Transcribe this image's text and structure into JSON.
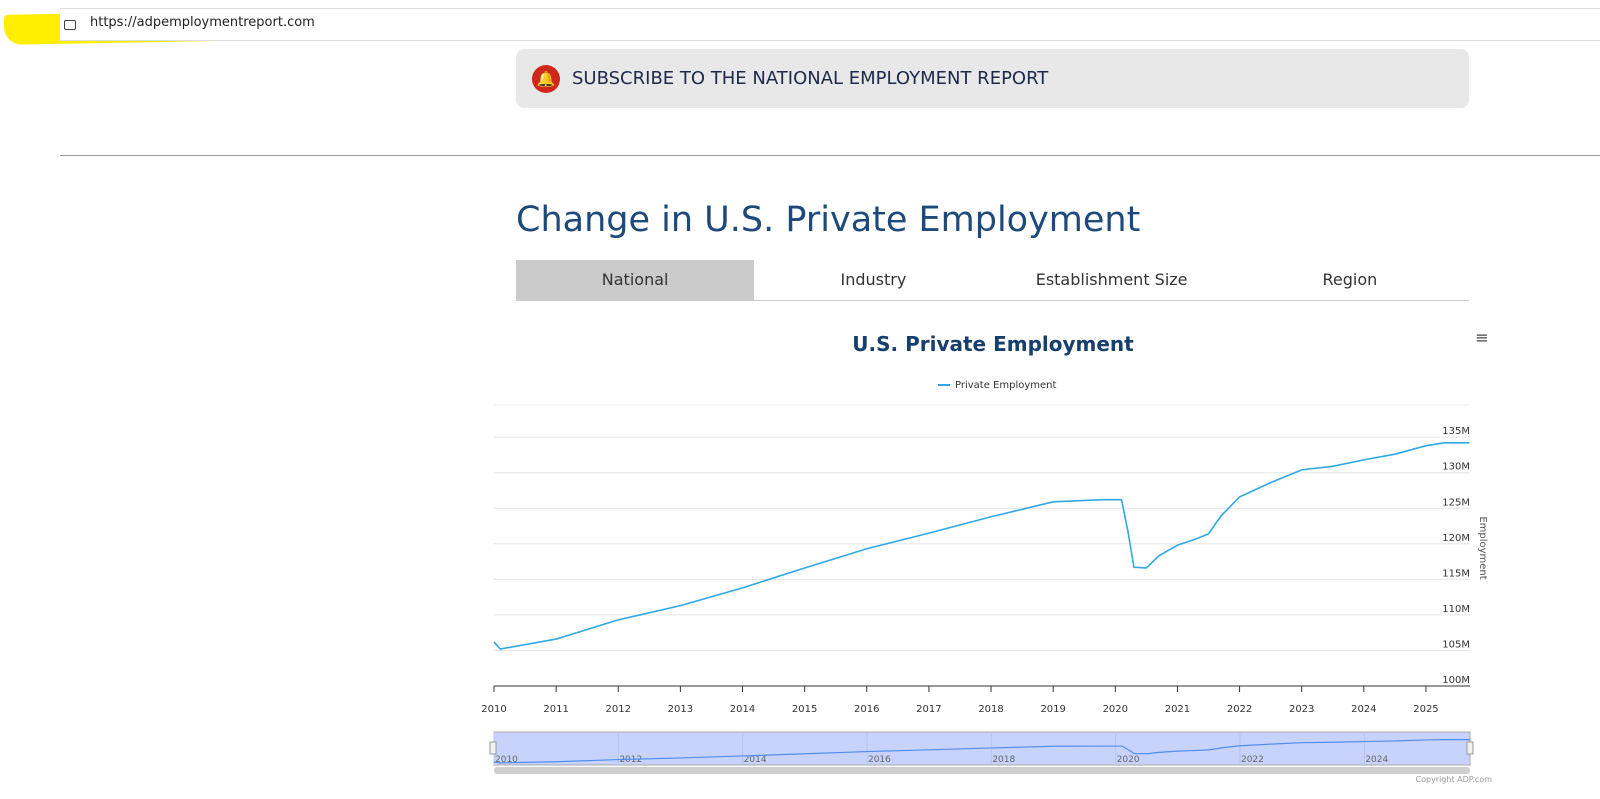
{
  "browser": {
    "url": "https://adpemploymentreport.com"
  },
  "subscribe": {
    "label": "SUBSCRIBE TO THE NATIONAL EMPLOYMENT REPORT",
    "icon": "bell-icon"
  },
  "page_title": "Change in U.S. Private Employment",
  "tabs": [
    {
      "label": "National",
      "active": true
    },
    {
      "label": "Industry"
    },
    {
      "label": "Establishment Size"
    },
    {
      "label": "Region"
    }
  ],
  "chart_data": {
    "type": "line",
    "title": "U.S. Private Employment",
    "ylabel": "Employment",
    "xlabel": "",
    "legend": {
      "entries": [
        "Private Employment"
      ],
      "placement": "top"
    },
    "series": [
      {
        "name": "Private Employment",
        "color": "#2fa8e6",
        "x": [
          2010.0,
          2010.1,
          2011.0,
          2012.0,
          2013.0,
          2014.0,
          2015.0,
          2016.0,
          2017.0,
          2018.0,
          2019.0,
          2019.8,
          2020.1,
          2020.2,
          2020.3,
          2020.5,
          2020.7,
          2021.0,
          2021.3,
          2021.5,
          2021.7,
          2022.0,
          2022.5,
          2023.0,
          2023.5,
          2024.0,
          2024.5,
          2025.0,
          2025.3,
          2025.7
        ],
        "y": [
          106.2,
          105.2,
          106.6,
          109.3,
          111.3,
          113.8,
          116.6,
          119.3,
          121.5,
          123.8,
          125.9,
          126.2,
          126.2,
          121.9,
          116.7,
          116.6,
          118.3,
          119.8,
          120.7,
          121.4,
          123.9,
          126.6,
          128.6,
          130.4,
          130.9,
          131.8,
          132.6,
          133.8,
          134.2,
          134.2
        ]
      }
    ],
    "xticks": [
      "2010",
      "2011",
      "2012",
      "2013",
      "2014",
      "2015",
      "2016",
      "2017",
      "2018",
      "2019",
      "2020",
      "2021",
      "2022",
      "2023",
      "2024",
      "2025"
    ],
    "yticks": [
      "100M",
      "105M",
      "110M",
      "115M",
      "120M",
      "125M",
      "130M",
      "135M"
    ],
    "xlim": [
      2010,
      2025.7
    ],
    "ylim": [
      100,
      140
    ],
    "navigator_ticks": [
      "2010",
      "2012",
      "2014",
      "2016",
      "2018",
      "2020",
      "2022",
      "2024"
    ],
    "grid": true,
    "credits": "Copyright ADP.com"
  }
}
